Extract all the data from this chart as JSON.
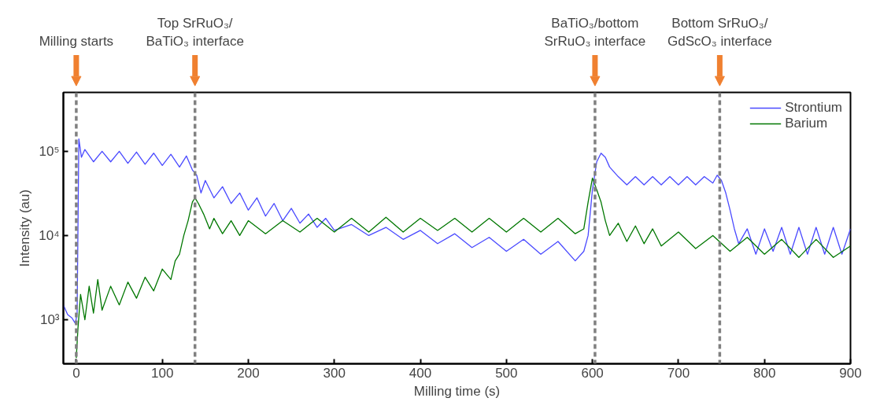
{
  "chart_data": {
    "type": "line",
    "xlabel": "Milling time (s)",
    "ylabel": "Intensity (au)",
    "log": "y",
    "grid": false,
    "legend": "top right",
    "line_style": "solid",
    "marker": "none",
    "xlim": [
      -15,
      900
    ],
    "xticks": [
      0,
      100,
      200,
      300,
      400,
      500,
      600,
      700,
      800,
      900
    ],
    "ylim": [
      300,
      500000
    ],
    "yticks": [
      {
        "value": 1000,
        "label": "10³"
      },
      {
        "value": 10000,
        "label": "10⁴"
      },
      {
        "value": 100000,
        "label": "10⁵"
      }
    ],
    "series": [
      {
        "name": "Strontium",
        "color": "#4a4aff",
        "x": [
          -15,
          -10,
          -5,
          -1,
          1,
          3,
          6,
          10,
          20,
          30,
          40,
          50,
          60,
          70,
          80,
          90,
          100,
          110,
          120,
          128,
          135,
          140,
          145,
          150,
          160,
          170,
          180,
          190,
          200,
          210,
          220,
          230,
          240,
          250,
          260,
          270,
          280,
          290,
          300,
          320,
          340,
          360,
          380,
          400,
          420,
          440,
          460,
          480,
          500,
          520,
          540,
          560,
          580,
          590,
          595,
          600,
          605,
          610,
          615,
          620,
          630,
          640,
          650,
          660,
          670,
          680,
          690,
          700,
          710,
          720,
          730,
          740,
          745,
          750,
          755,
          760,
          765,
          770,
          780,
          790,
          800,
          810,
          820,
          830,
          840,
          850,
          860,
          870,
          880,
          890,
          900
        ],
        "values": [
          1500,
          1150,
          1050,
          900,
          1200,
          140000,
          85000,
          105000,
          75000,
          100000,
          75000,
          100000,
          72000,
          98000,
          70000,
          95000,
          68000,
          92000,
          65000,
          88000,
          60000,
          52000,
          32000,
          45000,
          28000,
          38000,
          24000,
          32000,
          20000,
          28000,
          17000,
          24000,
          15000,
          21000,
          14000,
          18000,
          12500,
          16000,
          11500,
          13500,
          10000,
          12500,
          9000,
          11500,
          8000,
          10500,
          7200,
          9500,
          6500,
          9000,
          6000,
          8500,
          5000,
          6500,
          10000,
          35000,
          75000,
          95000,
          85000,
          65000,
          50000,
          40000,
          50000,
          40000,
          50000,
          40000,
          50000,
          40000,
          50000,
          40000,
          50000,
          42000,
          52000,
          45000,
          32000,
          20000,
          12000,
          8000,
          12000,
          6000,
          12000,
          6500,
          12500,
          6000,
          12500,
          6000,
          12500,
          6000,
          12500,
          6000,
          12000
        ]
      },
      {
        "name": "Barium",
        "color": "#007700",
        "x": [
          0,
          2,
          5,
          10,
          15,
          20,
          25,
          30,
          40,
          50,
          60,
          70,
          80,
          90,
          100,
          110,
          115,
          120,
          125,
          130,
          135,
          138,
          142,
          148,
          155,
          160,
          170,
          180,
          190,
          200,
          220,
          240,
          260,
          280,
          300,
          320,
          340,
          360,
          380,
          400,
          420,
          440,
          460,
          480,
          500,
          520,
          540,
          560,
          580,
          590,
          595,
          600,
          605,
          610,
          615,
          620,
          630,
          640,
          650,
          660,
          670,
          680,
          700,
          720,
          740,
          760,
          780,
          800,
          820,
          840,
          860,
          880,
          900
        ],
        "values": [
          350,
          800,
          2000,
          1000,
          2500,
          1200,
          3000,
          1300,
          2500,
          1500,
          2800,
          1800,
          3200,
          2200,
          4000,
          3000,
          5000,
          6000,
          10000,
          15000,
          25000,
          28000,
          24000,
          18000,
          12000,
          16000,
          10500,
          15000,
          10000,
          15000,
          10500,
          15000,
          11000,
          16000,
          11000,
          16000,
          11000,
          16500,
          11000,
          16000,
          11500,
          16000,
          11000,
          16000,
          11000,
          16000,
          11000,
          16000,
          10500,
          12000,
          25000,
          48000,
          35000,
          25000,
          15000,
          10000,
          14000,
          8500,
          13000,
          8000,
          12000,
          7500,
          11000,
          7000,
          10000,
          6500,
          9500,
          6000,
          9000,
          5500,
          9000,
          5500,
          7500
        ]
      }
    ],
    "ref_lines": [
      {
        "axis": "x",
        "value": 0,
        "label": "Milling starts",
        "color": "#808080",
        "line_style": "dashed"
      },
      {
        "axis": "x",
        "value": 138,
        "label": "Top SrRuO₃/\nBaTiO₃ interface",
        "color": "#808080",
        "line_style": "dashed"
      },
      {
        "axis": "x",
        "value": 603,
        "label": "BaTiO₃/bottom\nSrRuO₃ interface",
        "color": "#808080",
        "line_style": "dashed"
      },
      {
        "axis": "x",
        "value": 748,
        "label": "Bottom SrRuO₃/\nGdScO₃ interface",
        "color": "#808080",
        "line_style": "dashed"
      }
    ]
  }
}
